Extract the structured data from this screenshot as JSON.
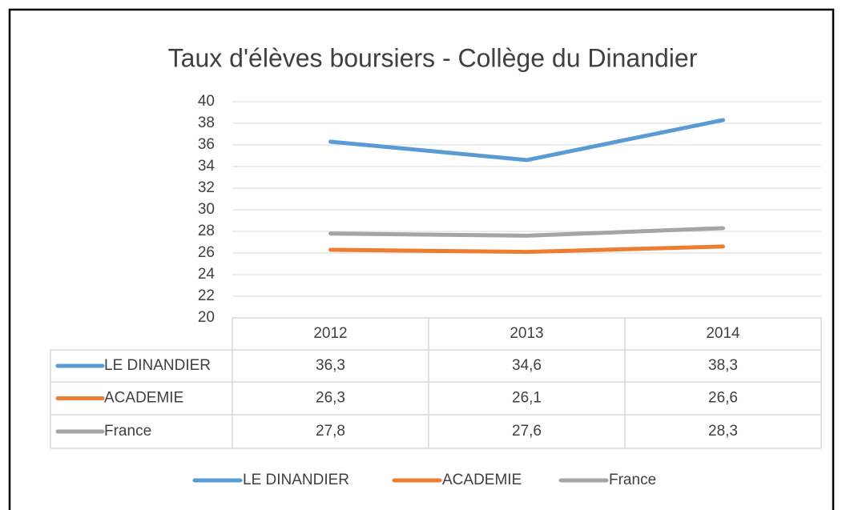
{
  "chart_data": {
    "type": "line",
    "title": "Taux d'élèves boursiers - Collège du Dinandier",
    "categories": [
      "2012",
      "2013",
      "2014"
    ],
    "series": [
      {
        "name": "LE DINANDIER",
        "color": "#5b9bd5",
        "values": [
          36.3,
          34.6,
          38.3
        ],
        "value_labels": [
          "36,3",
          "34,6",
          "38,3"
        ]
      },
      {
        "name": "ACADEMIE",
        "color": "#ed7d31",
        "values": [
          26.3,
          26.1,
          26.6
        ],
        "value_labels": [
          "26,3",
          "26,1",
          "26,6"
        ]
      },
      {
        "name": "France",
        "color": "#a5a5a5",
        "values": [
          27.8,
          27.6,
          28.3
        ],
        "value_labels": [
          "27,8",
          "27,6",
          "28,3"
        ]
      }
    ],
    "ylim": [
      20,
      40
    ],
    "yticks": [
      20,
      22,
      24,
      26,
      28,
      30,
      32,
      34,
      36,
      38,
      40
    ],
    "grid": true,
    "data_table": true,
    "legend": "bottom"
  }
}
